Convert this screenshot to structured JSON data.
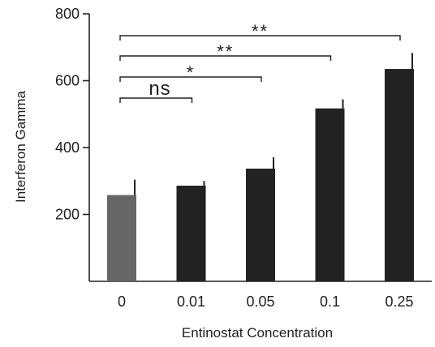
{
  "chart_data": {
    "type": "bar",
    "title": "",
    "xlabel": "Entinostat Concentration",
    "ylabel": "Interferon Gamma",
    "categories": [
      "0",
      "0.01",
      "0.05",
      "0.1",
      "0.25"
    ],
    "values": [
      258,
      286,
      337,
      517,
      635
    ],
    "errors": [
      46,
      14,
      34,
      27,
      48
    ],
    "bar_colors": [
      "#666666",
      "#222222",
      "#222222",
      "#222222",
      "#222222"
    ],
    "ylim": [
      0,
      800
    ],
    "yticks": [
      200,
      400,
      600,
      800
    ],
    "grid": false,
    "comparisons": [
      {
        "from": "0",
        "to": "0.01",
        "label": "ns"
      },
      {
        "from": "0",
        "to": "0.05",
        "label": "*"
      },
      {
        "from": "0",
        "to": "0.1",
        "label": "**"
      },
      {
        "from": "0",
        "to": "0.25",
        "label": "**"
      }
    ]
  }
}
